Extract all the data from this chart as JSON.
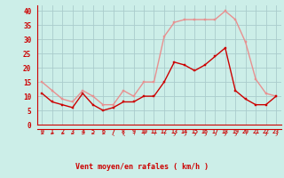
{
  "hours": [
    0,
    1,
    2,
    3,
    4,
    5,
    6,
    7,
    8,
    9,
    10,
    11,
    12,
    13,
    14,
    15,
    16,
    17,
    18,
    19,
    20,
    21,
    22,
    23
  ],
  "wind_mean": [
    11,
    8,
    7,
    6,
    11,
    7,
    5,
    6,
    8,
    8,
    10,
    10,
    15,
    22,
    21,
    19,
    21,
    24,
    27,
    12,
    9,
    7,
    7,
    10
  ],
  "wind_gust": [
    15,
    12,
    9,
    8,
    12,
    10,
    7,
    7,
    12,
    10,
    15,
    15,
    31,
    36,
    37,
    37,
    37,
    37,
    40,
    37,
    29,
    16,
    11,
    10
  ],
  "line_mean_color": "#cc0000",
  "line_gust_color": "#e89090",
  "bg_color": "#cceee8",
  "grid_color": "#aacccc",
  "axis_label_color": "#cc0000",
  "tick_color": "#cc0000",
  "xlabel": "Vent moyen/en rafales ( km/h )",
  "ylim": [
    0,
    42
  ],
  "yticks": [
    0,
    5,
    10,
    15,
    20,
    25,
    30,
    35,
    40
  ],
  "xlim": [
    -0.5,
    23.5
  ],
  "arrow_row": [
    "←",
    "←",
    "←",
    "←",
    "←",
    "←",
    "←",
    "↖",
    "↖",
    "↑",
    "↑",
    "↑",
    "↑",
    "↗",
    "↗",
    "↗",
    "↗",
    "↗",
    "↗",
    "↗",
    "↑",
    "↑",
    "↗",
    "↗"
  ]
}
